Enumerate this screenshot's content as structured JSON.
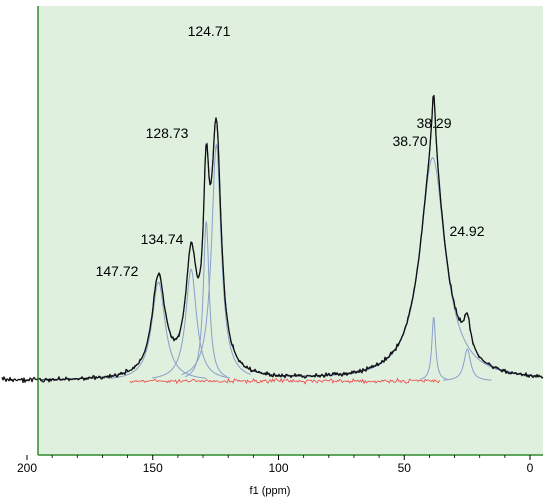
{
  "chart_data": {
    "type": "line",
    "title": "",
    "xlabel": "f1 (ppm)",
    "ylabel": "",
    "xlim": [
      200,
      0
    ],
    "x_reversed": true,
    "x_ticks": [
      200,
      150,
      100,
      50,
      0
    ],
    "x_tick_labels": [
      "200",
      "150",
      "100",
      "50",
      "0"
    ],
    "grid": false,
    "legend": "none",
    "peak_labels": [
      {
        "text": "124.71",
        "ppm": 124.71
      },
      {
        "text": "128.73",
        "ppm": 128.73
      },
      {
        "text": "134.74",
        "ppm": 134.74
      },
      {
        "text": "147.72",
        "ppm": 147.72
      },
      {
        "text": "38.29",
        "ppm": 38.29
      },
      {
        "text": "38.70",
        "ppm": 38.7
      },
      {
        "text": "24.92",
        "ppm": 24.92
      }
    ],
    "deconvolution_components": [
      {
        "center_ppm": 147.72,
        "rel_height": 0.31,
        "width_ppm": 3.2
      },
      {
        "center_ppm": 134.74,
        "rel_height": 0.35,
        "width_ppm": 2.6
      },
      {
        "center_ppm": 128.73,
        "rel_height": 0.5,
        "width_ppm": 1.4
      },
      {
        "center_ppm": 124.71,
        "rel_height": 0.74,
        "width_ppm": 2.3
      },
      {
        "center_ppm": 38.7,
        "rel_height": 0.7,
        "width_ppm": 6.0
      },
      {
        "center_ppm": 38.29,
        "rel_height": 0.2,
        "width_ppm": 0.9
      },
      {
        "center_ppm": 24.92,
        "rel_height": 0.1,
        "width_ppm": 1.6
      }
    ],
    "colors": {
      "plot_background": "#dff0df",
      "frame": "#2e8b2e",
      "spectrum": "#111111",
      "components": "#8a9fc9",
      "residual": "#ee4444",
      "fit": "#3a3a8a"
    }
  }
}
